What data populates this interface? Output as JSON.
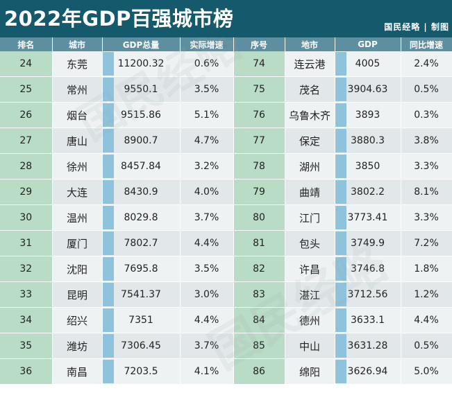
{
  "title": "2022年GDP百强城市榜",
  "credit": "国民经略 | 制图",
  "headers_left": [
    "排名",
    "城市",
    "GDP总量",
    "实际增速"
  ],
  "headers_right": [
    "序号",
    "地市",
    "GDP",
    "同比增速"
  ],
  "colors": {
    "banner": "#145a6c",
    "header": "#5e8fa0",
    "rank_cell": "#b9dcc6",
    "gdp_bar": "#8fc3dc"
  },
  "rows": [
    {
      "rank": "24",
      "city": "东莞",
      "gdp": "11200.32",
      "growth": "0.6%",
      "rank2": "74",
      "city2": "连云港",
      "gdp2": "4005",
      "growth2": "2.4%"
    },
    {
      "rank": "25",
      "city": "常州",
      "gdp": "9550.1",
      "growth": "3.5%",
      "rank2": "75",
      "city2": "茂名",
      "gdp2": "3904.63",
      "growth2": "0.5%"
    },
    {
      "rank": "26",
      "city": "烟台",
      "gdp": "9515.86",
      "growth": "5.1%",
      "rank2": "76",
      "city2": "乌鲁木齐",
      "gdp2": "3893",
      "growth2": "0.3%"
    },
    {
      "rank": "27",
      "city": "唐山",
      "gdp": "8900.7",
      "growth": "4.7%",
      "rank2": "77",
      "city2": "保定",
      "gdp2": "3880.3",
      "growth2": "3.8%"
    },
    {
      "rank": "28",
      "city": "徐州",
      "gdp": "8457.84",
      "growth": "3.2%",
      "rank2": "78",
      "city2": "湖州",
      "gdp2": "3850",
      "growth2": "3.3%"
    },
    {
      "rank": "29",
      "city": "大连",
      "gdp": "8430.9",
      "growth": "4.0%",
      "rank2": "79",
      "city2": "曲靖",
      "gdp2": "3802.2",
      "growth2": "8.1%"
    },
    {
      "rank": "30",
      "city": "温州",
      "gdp": "8029.8",
      "growth": "3.7%",
      "rank2": "80",
      "city2": "江门",
      "gdp2": "3773.41",
      "growth2": "3.3%"
    },
    {
      "rank": "31",
      "city": "厦门",
      "gdp": "7802.7",
      "growth": "4.4%",
      "rank2": "81",
      "city2": "包头",
      "gdp2": "3749.9",
      "growth2": "7.2%"
    },
    {
      "rank": "32",
      "city": "沈阳",
      "gdp": "7695.8",
      "growth": "3.5%",
      "rank2": "82",
      "city2": "许昌",
      "gdp2": "3746.8",
      "growth2": "1.8%"
    },
    {
      "rank": "33",
      "city": "昆明",
      "gdp": "7541.37",
      "growth": "3.0%",
      "rank2": "83",
      "city2": "湛江",
      "gdp2": "3712.56",
      "growth2": "1.2%"
    },
    {
      "rank": "34",
      "city": "绍兴",
      "gdp": "7351",
      "growth": "4.4%",
      "rank2": "84",
      "city2": "德州",
      "gdp2": "3633.1",
      "growth2": "4.4%"
    },
    {
      "rank": "35",
      "city": "潍坊",
      "gdp": "7306.45",
      "growth": "3.7%",
      "rank2": "85",
      "city2": "中山",
      "gdp2": "3631.28",
      "growth2": "0.5%"
    },
    {
      "rank": "36",
      "city": "南昌",
      "gdp": "7203.5",
      "growth": "4.1%",
      "rank2": "86",
      "city2": "绵阳",
      "gdp2": "3626.94",
      "growth2": "5.0%"
    }
  ]
}
